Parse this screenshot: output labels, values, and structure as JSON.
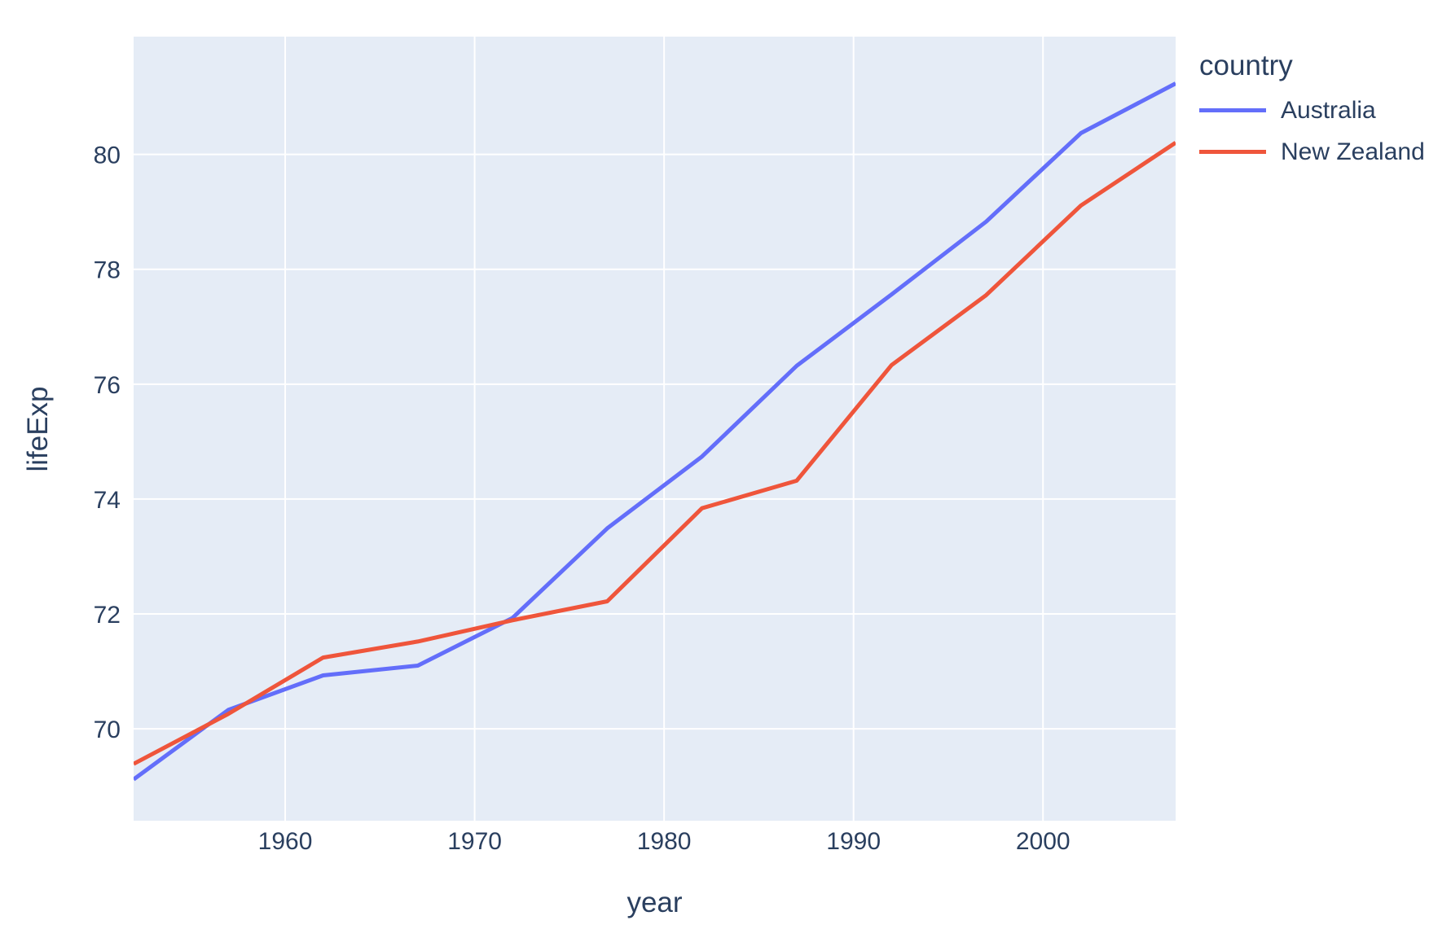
{
  "figure": {
    "background": "#ffffff",
    "panel_background": "#e5ecf6",
    "grid_color": "#ffffff",
    "text_color": "#2a3f5f",
    "line_width": 5
  },
  "legend": {
    "title": "country"
  },
  "chart_data": {
    "type": "line",
    "title": "",
    "xlabel": "year",
    "ylabel": "lifeExp",
    "xlim": [
      1952,
      2007
    ],
    "ylim": [
      68.4,
      82.05
    ],
    "x_ticks": [
      1960,
      1970,
      1980,
      1990,
      2000
    ],
    "y_ticks": [
      70,
      72,
      74,
      76,
      78,
      80
    ],
    "grid": true,
    "legend_position": "top-right-outside",
    "x": [
      1952,
      1957,
      1962,
      1967,
      1972,
      1977,
      1982,
      1987,
      1992,
      1997,
      2002,
      2007
    ],
    "series": [
      {
        "name": "Australia",
        "color": "#636efa",
        "values": [
          69.12,
          70.33,
          70.93,
          71.1,
          71.93,
          73.49,
          74.74,
          76.32,
          77.56,
          78.83,
          80.37,
          81.235
        ]
      },
      {
        "name": "New Zealand",
        "color": "#ef553b",
        "values": [
          69.39,
          70.26,
          71.24,
          71.52,
          71.89,
          72.22,
          73.84,
          74.32,
          76.33,
          77.55,
          79.11,
          80.204
        ]
      }
    ]
  }
}
